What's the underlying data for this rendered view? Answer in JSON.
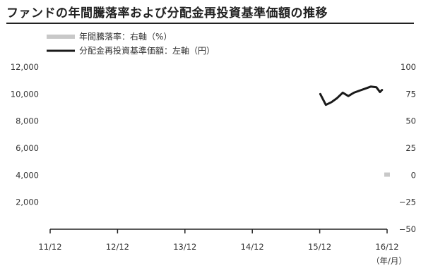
{
  "chart_data": {
    "type": "line",
    "title": "ファンドの年間騰落率および分配金再投資基準価額の推移",
    "x_categories": [
      "11/12",
      "12/12",
      "13/12",
      "14/12",
      "15/12",
      "16/12"
    ],
    "x_unit_label": "（年/月）",
    "y_left": {
      "ticks": [
        "12,000",
        "10,000",
        "8,000",
        "6,000",
        "4,000",
        "2,000"
      ],
      "ylim": [
        0,
        12000
      ]
    },
    "y_right": {
      "ticks": [
        "100",
        "75",
        "50",
        "25",
        "0",
        "−25",
        "−50"
      ],
      "ylim": [
        -50,
        100
      ]
    },
    "series": [
      {
        "name": "年間騰落率：右軸（%）",
        "type": "bar",
        "axis": "right",
        "color": "#c8c8c8",
        "points": [
          {
            "x": "16/12",
            "y": 0.5
          }
        ]
      },
      {
        "name": "分配金再投資基準価額：左軸（円）",
        "type": "line",
        "axis": "left",
        "color": "#1a1a1a",
        "points": [
          {
            "x": "2016-01",
            "y": 10000
          },
          {
            "x": "2016-02",
            "y": 9200
          },
          {
            "x": "2016-03",
            "y": 9400
          },
          {
            "x": "2016-04",
            "y": 9700
          },
          {
            "x": "2016-05",
            "y": 10100
          },
          {
            "x": "2016-06",
            "y": 9850
          },
          {
            "x": "2016-07",
            "y": 10100
          },
          {
            "x": "2016-08",
            "y": 10250
          },
          {
            "x": "2016-09",
            "y": 10400
          },
          {
            "x": "2016-10",
            "y": 10550
          },
          {
            "x": "2016-11",
            "y": 10500
          },
          {
            "x": "2016-11-20",
            "y": 10150
          },
          {
            "x": "2016-12",
            "y": 10300
          }
        ]
      }
    ],
    "grid": false,
    "legend_position": "top-left"
  }
}
